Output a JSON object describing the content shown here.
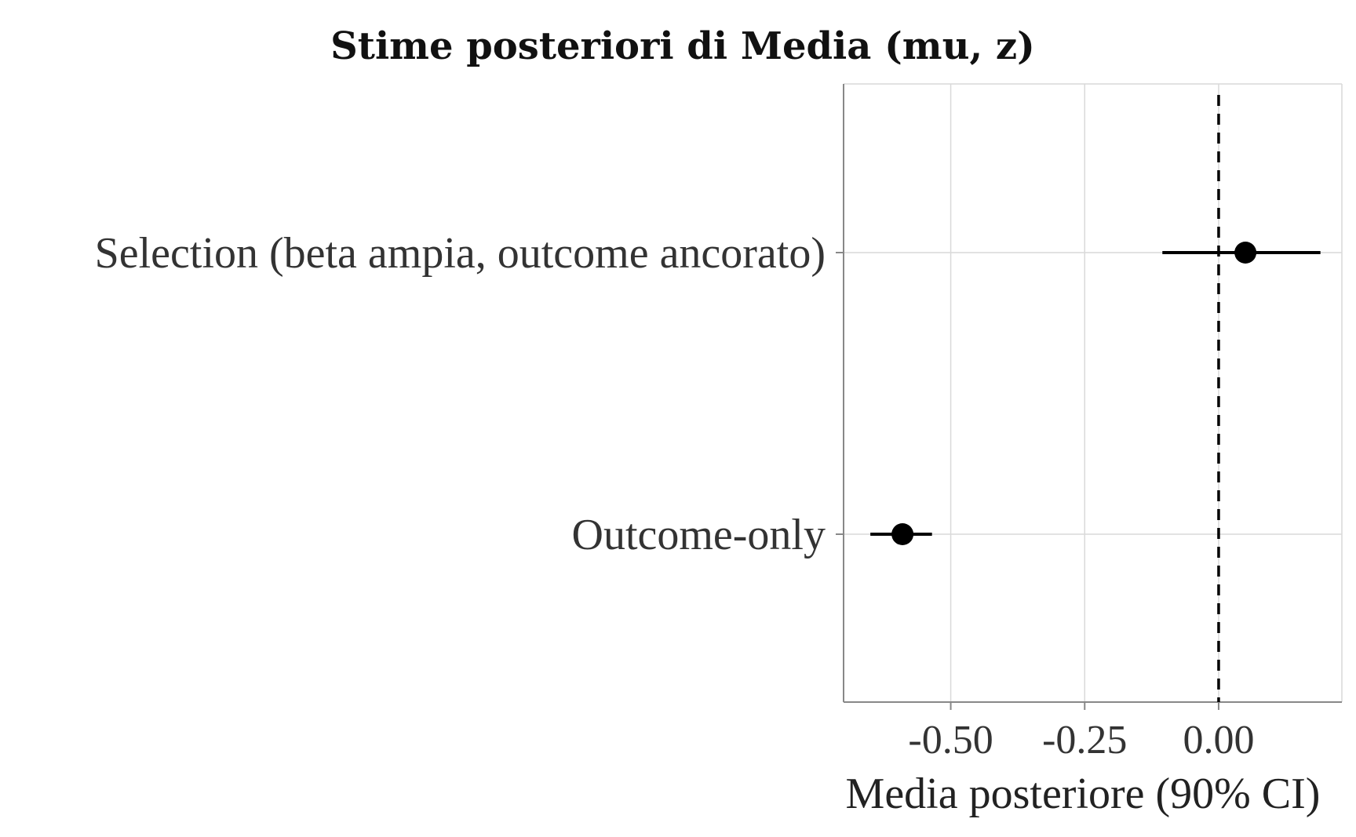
{
  "chart_data": {
    "type": "scatter",
    "title": "Stime posteriori di Media (mu, z)",
    "xlabel": "Media posteriore (90% CI)",
    "ylabel": "",
    "xlim": [
      -0.7,
      0.23
    ],
    "x_ticks": [
      {
        "value": -0.5,
        "label": "-0.50"
      },
      {
        "value": -0.25,
        "label": "-0.25"
      },
      {
        "value": 0.0,
        "label": "0.00"
      }
    ],
    "reference_line": {
      "value": 0.0,
      "style": "dashed"
    },
    "grid": true,
    "points": [
      {
        "category": "Selection (beta ampia, outcome ancorato)",
        "estimate": 0.05,
        "lower": -0.105,
        "upper": 0.19
      },
      {
        "category": "Outcome-only",
        "estimate": -0.59,
        "lower": -0.65,
        "upper": -0.535
      }
    ],
    "colors": {
      "point": "#000000",
      "grid": "#d9d9d9",
      "axis": "#888888"
    }
  }
}
